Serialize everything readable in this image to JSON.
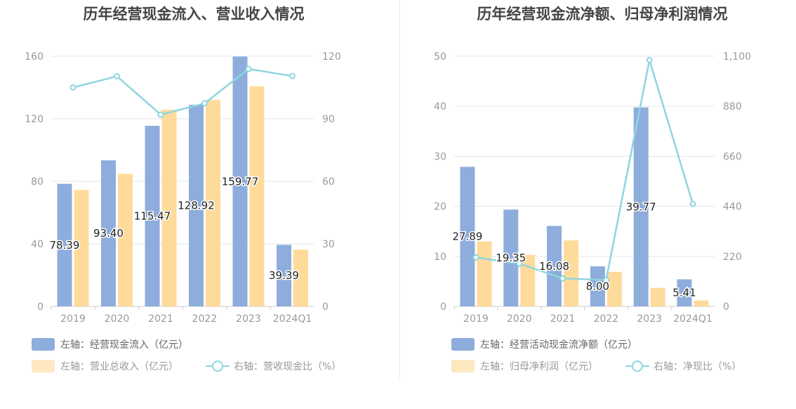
{
  "colors": {
    "bar_primary": "#8eaddc",
    "bar_secondary": "#fedb9b",
    "line": "#8fd5df",
    "axis_text": "#999999",
    "title": "#444444",
    "grid": "#e3e6ef",
    "label": "#222222"
  },
  "chart_data": [
    {
      "type": "bar",
      "title": "历年经营现金流入、营业收入情况",
      "categories": [
        "2019",
        "2020",
        "2021",
        "2022",
        "2023",
        "2024Q1"
      ],
      "left_axis": {
        "ticks": [
          "0",
          "40",
          "80",
          "120",
          "160"
        ],
        "range": [
          0,
          160
        ]
      },
      "right_axis": {
        "ticks": [
          "0",
          "30",
          "60",
          "90",
          "120"
        ],
        "range": [
          0,
          120
        ]
      },
      "series": [
        {
          "name": "左轴：经营现金流入（亿元）",
          "kind": "bar",
          "axis": "left",
          "values": [
            78.39,
            93.4,
            115.47,
            128.92,
            159.77,
            39.39
          ],
          "labels": [
            "78.39",
            "93.40",
            "115.47",
            "128.92",
            "159.77",
            "39.39"
          ]
        },
        {
          "name": "左轴：营业总收入（亿元）",
          "kind": "bar",
          "axis": "left",
          "values": [
            74.5,
            84.8,
            125.8,
            132.0,
            140.8,
            36.3
          ]
        },
        {
          "name": "右轴：营收现金比（%）",
          "kind": "line",
          "axis": "right",
          "values": [
            105.0,
            110.4,
            92.0,
            97.4,
            113.9,
            110.5
          ]
        }
      ],
      "legend": {
        "placement": "bottom-left"
      }
    },
    {
      "type": "bar",
      "title": "历年经营现金流净额、归母净利润情况",
      "categories": [
        "2019",
        "2020",
        "2021",
        "2022",
        "2023",
        "2024Q1"
      ],
      "left_axis": {
        "ticks": [
          "0",
          "10",
          "20",
          "30",
          "40",
          "50"
        ],
        "range": [
          0,
          50
        ]
      },
      "right_axis": {
        "ticks": [
          "0",
          "220",
          "440",
          "660",
          "880",
          "1,100"
        ],
        "range": [
          0,
          1100
        ]
      },
      "series": [
        {
          "name": "左轴：经营活动现金流净额（亿元）",
          "kind": "bar",
          "axis": "left",
          "values": [
            27.89,
            19.35,
            16.08,
            8.0,
            39.77,
            5.41
          ],
          "labels": [
            "27.89",
            "19.35",
            "16.08",
            "8.00",
            "39.77",
            "5.41"
          ]
        },
        {
          "name": "左轴：归母净利润（亿元）",
          "kind": "bar",
          "axis": "left",
          "values": [
            13.0,
            10.3,
            13.2,
            6.9,
            3.7,
            1.2
          ]
        },
        {
          "name": "右轴：净现比（%）",
          "kind": "line",
          "axis": "right",
          "values": [
            215,
            188,
            123,
            116,
            1083,
            451
          ]
        }
      ],
      "legend": {
        "placement": "bottom-left"
      }
    }
  ]
}
